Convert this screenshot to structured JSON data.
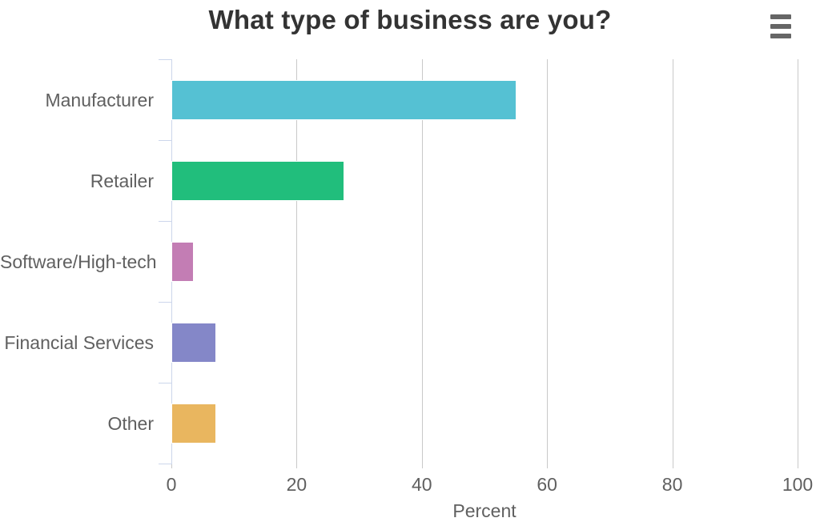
{
  "ui_colors": {
    "title": "#333333",
    "label": "#606060",
    "grid": "#c9c9c9",
    "axis": "#ccd6eb",
    "bar_border": "#ffffff",
    "menu_icon": "#666666",
    "background": "#ffffff"
  },
  "menu": {
    "icon": "hamburger-icon"
  },
  "chart_data": {
    "type": "bar",
    "orientation": "horizontal",
    "title": "What type of business are you?",
    "categories": [
      "Manufacturer",
      "Retailer",
      "Software/High-tech",
      "Financial Services",
      "Other"
    ],
    "values": [
      55,
      27.5,
      3.5,
      7,
      7
    ],
    "colors": [
      "#55C1D3",
      "#21BE7C",
      "#C37DB4",
      "#8487C8",
      "#E9B65F"
    ],
    "xlabel": "Percent",
    "ylabel": "",
    "xlim": [
      0,
      100
    ],
    "xticks": [
      0,
      20,
      40,
      60,
      80,
      100
    ],
    "grid": true,
    "legend": false
  }
}
